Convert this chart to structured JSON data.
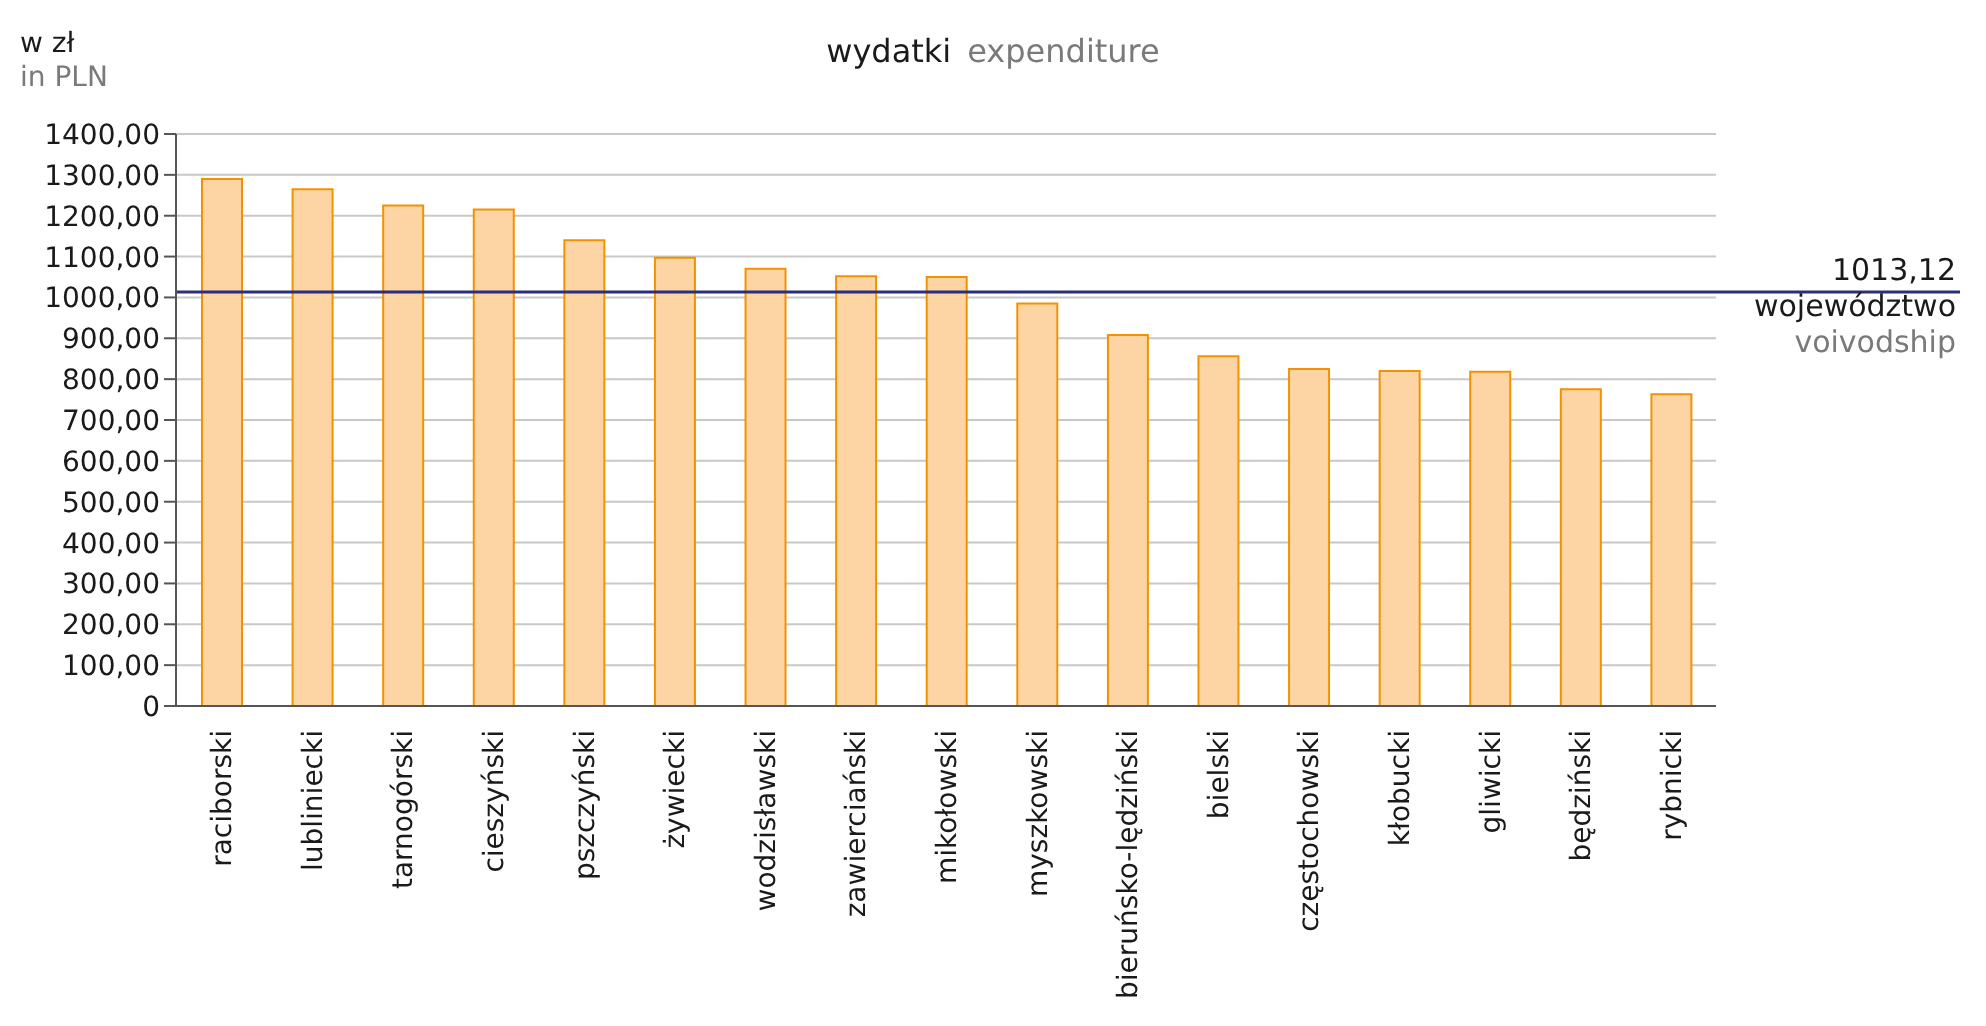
{
  "chart_data": {
    "type": "bar",
    "title": "wydatki",
    "subtitle": "expenditure",
    "ylabel": "w zł\nin PLN",
    "categories": [
      "raciborski",
      "lubliniecki",
      "tarnogórski",
      "cieszyński",
      "pszczyński",
      "żywiecki",
      "wodzisławski",
      "zawierciański",
      "mikołowski",
      "myszkowski",
      "bieruńsko-lędziński",
      "bielski",
      "częstochowski",
      "kłobucki",
      "gliwicki",
      "będziński",
      "rybnicki"
    ],
    "series": [
      {
        "color": "#fdd5a5",
        "values": [
          1290,
          1265,
          1225,
          1215,
          1140,
          1097,
          1070,
          1052,
          1050,
          985,
          908,
          856,
          825,
          820,
          818,
          775,
          763
        ]
      }
    ],
    "ylim": [
      0,
      1400
    ],
    "yticks": [
      0,
      {
        "value": 100,
        "label": "100,00"
      },
      {
        "value": 200,
        "label": "200,00"
      },
      {
        "value": 300,
        "label": "300,00"
      },
      {
        "value": 400,
        "label": "400,00"
      },
      {
        "value": 500,
        "label": "500,00"
      },
      {
        "value": 600,
        "label": "600,00"
      },
      {
        "value": 700,
        "label": "700,00"
      },
      {
        "value": 800,
        "label": "800,00"
      },
      {
        "value": 900,
        "label": "900,00"
      },
      {
        "value": 1000,
        "label": "1000,00"
      },
      {
        "value": 1100,
        "label": "1100,00"
      },
      {
        "value": 1200,
        "label": "1200,00"
      },
      {
        "value": 1300,
        "label": "1300,00"
      },
      {
        "value": 1400,
        "label": "1400,00"
      }
    ],
    "ref_lines": [
      {
        "axis": "y",
        "value": 1013.12,
        "label": "1013,12\nwojewództwo\nvoivodship",
        "color": "#2b2f7a"
      }
    ],
    "grid": "y"
  }
}
